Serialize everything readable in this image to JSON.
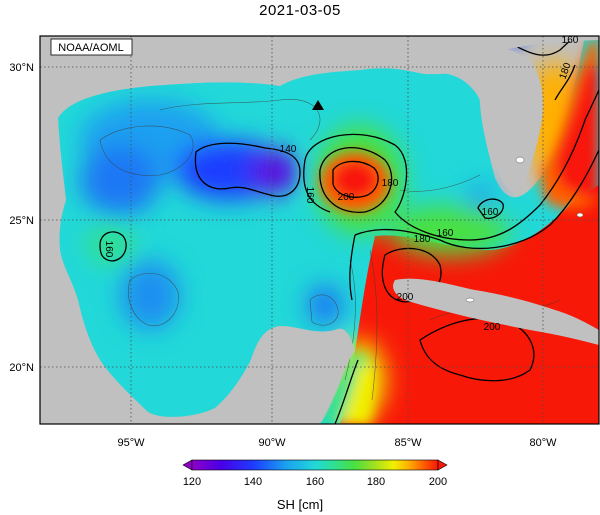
{
  "title": "2021-03-05",
  "attribution": "NOAA/AOML",
  "map": {
    "lat_labels": [
      "30°N",
      "25°N",
      "20°N"
    ],
    "lon_labels": [
      "95°W",
      "90°W",
      "85°W",
      "80°W"
    ],
    "contour_labels": [
      "140",
      "160",
      "180",
      "200",
      "160",
      "180",
      "160",
      "180",
      "160",
      "200",
      "160",
      "140",
      "160",
      "180",
      "200"
    ],
    "marker": "triangle-marker",
    "colors": {
      "land": "#c0c0c0",
      "frame": "#000000",
      "grid": "#4d4d4d"
    }
  },
  "colorbar": {
    "ticks": [
      "120",
      "140",
      "160",
      "180",
      "200"
    ],
    "label": "SH [cm]",
    "colors": [
      "#8f00c8",
      "#4800e8",
      "#1e3cff",
      "#1aa0f0",
      "#22d8d8",
      "#30e090",
      "#48e040",
      "#a0e020",
      "#f0f000",
      "#ffb000",
      "#ff6000",
      "#f81808"
    ]
  }
}
